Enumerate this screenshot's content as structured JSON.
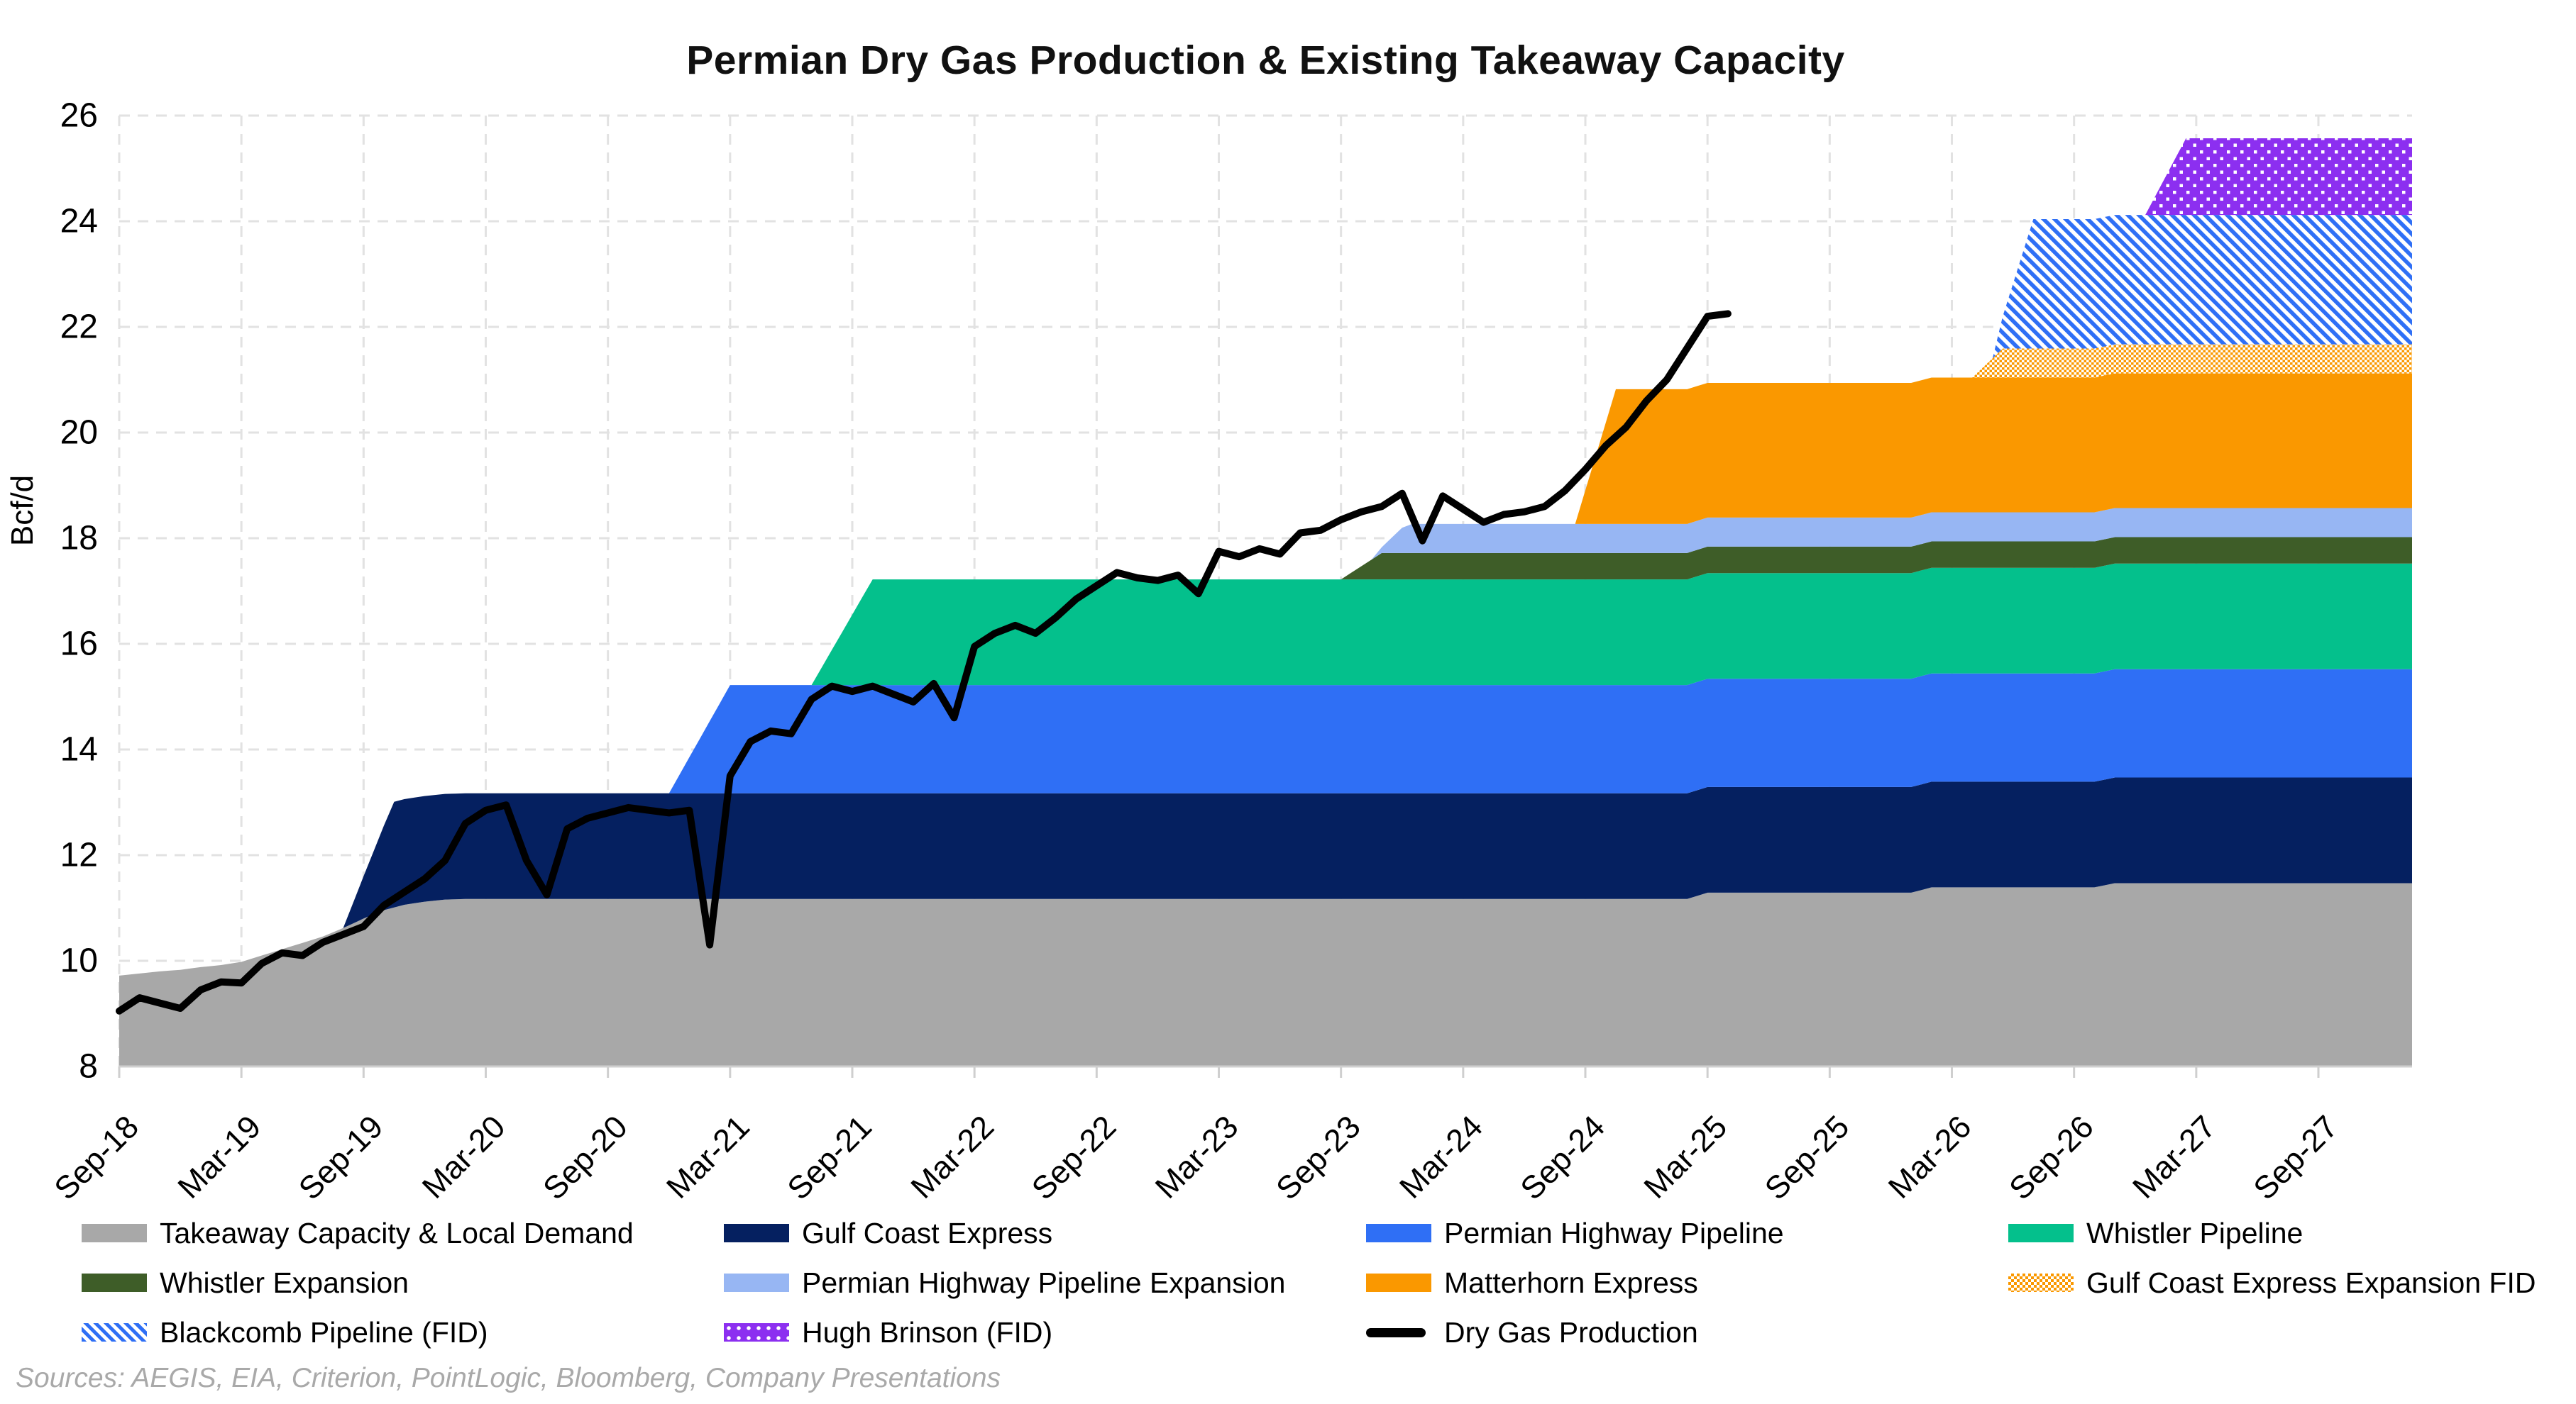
{
  "chart": {
    "title": "Permian Dry Gas Production & Existing Takeaway Capacity",
    "sources": "Sources: AEGIS, EIA, Criterion, PointLogic, Bloomberg, Company Presentations",
    "y_axis": {
      "label": "Bcf/d",
      "ticks": [
        8,
        10,
        12,
        14,
        16,
        18,
        20,
        22,
        24,
        26
      ],
      "min": 8,
      "max": 26
    },
    "x_axis": {
      "tick_labels": [
        "Sep-18",
        "Mar-19",
        "Sep-19",
        "Mar-20",
        "Sep-20",
        "Mar-21",
        "Sep-21",
        "Mar-22",
        "Sep-22",
        "Mar-23",
        "Sep-23",
        "Mar-24",
        "Sep-24",
        "Mar-25",
        "Sep-25",
        "Mar-26",
        "Sep-26",
        "Mar-27",
        "Sep-27"
      ],
      "months_between_ticks": 6
    }
  },
  "colors": {
    "takeaway": "#a8a8a8",
    "gulf_coast_express": "#052060",
    "permian_highway": "#2f6ff5",
    "whistler": "#04c08c",
    "whistler_expansion": "#3e5d28",
    "permian_highway_expansion": "#97b6f3",
    "matterhorn": "#fa9800",
    "gcx_expansion_fid": "#fa9800",
    "blackcomb_fid": "#2f6ff5",
    "hugh_brinson_fid": "#8c2ff0",
    "production_line": "#000000",
    "gridline": "#e2e2e2",
    "axis": "#cfcfcf",
    "white": "#ffffff"
  },
  "legend": {
    "items": [
      {
        "label": "Takeaway Capacity & Local Demand",
        "swatch": "solid",
        "color": "#a8a8a8"
      },
      {
        "label": "Gulf Coast Express",
        "swatch": "solid",
        "color": "#052060"
      },
      {
        "label": "Permian Highway Pipeline",
        "swatch": "solid",
        "color": "#2f6ff5"
      },
      {
        "label": "Whistler Pipeline",
        "swatch": "solid",
        "color": "#04c08c"
      },
      {
        "label": "Whistler Expansion",
        "swatch": "solid",
        "color": "#3e5d28"
      },
      {
        "label": "Permian Highway Pipeline Expansion",
        "swatch": "solid",
        "color": "#97b6f3"
      },
      {
        "label": "Matterhorn Express",
        "swatch": "solid",
        "color": "#fa9800"
      },
      {
        "label": "Gulf Coast Express Expansion FID",
        "swatch": "checker",
        "color": "#fa9800"
      },
      {
        "label": "Blackcomb Pipeline (FID)",
        "swatch": "stripes",
        "color": "#2f6ff5"
      },
      {
        "label": "Hugh Brinson (FID)",
        "swatch": "dots",
        "color": "#8c2ff0"
      },
      {
        "label": "Dry Gas Production",
        "swatch": "line",
        "color": "#000000"
      }
    ]
  },
  "chart_data": {
    "type": "area",
    "subtype": "stacked-area-with-line",
    "title": "Permian Dry Gas Production & Existing Takeaway Capacity",
    "ylabel": "Bcf/d",
    "ylim": [
      8,
      26
    ],
    "grid": "dashed",
    "legend_position": "bottom",
    "time_start": "Sep-2018",
    "time_end_months_after_start": 112.6,
    "x_tick_month_offsets": [
      0,
      6,
      12,
      18,
      24,
      30,
      36,
      42,
      48,
      54,
      60,
      66,
      72,
      78,
      84,
      90,
      96,
      102,
      108
    ],
    "x_tick_labels": [
      "Sep-18",
      "Mar-19",
      "Sep-19",
      "Mar-20",
      "Sep-20",
      "Mar-21",
      "Sep-21",
      "Mar-22",
      "Sep-22",
      "Mar-23",
      "Sep-23",
      "Mar-24",
      "Sep-24",
      "Mar-25",
      "Sep-25",
      "Mar-26",
      "Sep-26",
      "Mar-27",
      "Sep-27"
    ],
    "layers_note": "Stacked bottom-to-top. 'base_breakpoints' give the absolute level (Bcf/d) of the bottom gray layer vs months since Sep-2018; every other layer lists its thickness (Bcf/d) breakpoints which ramp in when the pipeline enters service.",
    "layers": [
      {
        "name": "Takeaway Capacity & Local Demand",
        "fill": "solid",
        "color": "#a8a8a8",
        "base_breakpoints": [
          [
            0,
            9.72
          ],
          [
            1,
            9.76
          ],
          [
            2,
            9.8
          ],
          [
            3,
            9.83
          ],
          [
            4,
            9.88
          ],
          [
            5,
            9.92
          ],
          [
            6,
            9.98
          ],
          [
            7,
            10.1
          ],
          [
            8,
            10.22
          ],
          [
            9,
            10.34
          ],
          [
            10,
            10.46
          ],
          [
            11,
            10.62
          ],
          [
            12,
            10.8
          ],
          [
            13,
            10.96
          ],
          [
            14,
            11.06
          ],
          [
            15,
            11.12
          ],
          [
            16,
            11.16
          ],
          [
            17,
            11.17
          ],
          [
            77,
            11.17
          ],
          [
            78,
            11.29
          ],
          [
            88,
            11.29
          ],
          [
            89,
            11.39
          ],
          [
            97,
            11.39
          ],
          [
            98,
            11.47
          ],
          [
            112.6,
            11.47
          ]
        ]
      },
      {
        "name": "Gulf Coast Express",
        "fill": "solid",
        "color": "#052060",
        "breakpoints": [
          [
            0,
            0
          ],
          [
            11,
            0
          ],
          [
            13.5,
            2.0
          ],
          [
            112.6,
            2.0
          ]
        ]
      },
      {
        "name": "Permian Highway Pipeline",
        "fill": "solid",
        "color": "#2f6ff5",
        "breakpoints": [
          [
            0,
            0
          ],
          [
            27,
            0
          ],
          [
            30,
            2.05
          ],
          [
            112.6,
            2.05
          ]
        ]
      },
      {
        "name": "Whistler Pipeline",
        "fill": "solid",
        "color": "#04c08c",
        "breakpoints": [
          [
            0,
            0
          ],
          [
            34,
            0
          ],
          [
            37,
            2.0
          ],
          [
            112.6,
            2.0
          ]
        ]
      },
      {
        "name": "Whistler Expansion",
        "fill": "solid",
        "color": "#3e5d28",
        "breakpoints": [
          [
            0,
            0
          ],
          [
            60,
            0
          ],
          [
            62,
            0.5
          ],
          [
            112.6,
            0.5
          ]
        ]
      },
      {
        "name": "Permian Highway Pipeline Expansion",
        "fill": "solid",
        "color": "#97b6f3",
        "breakpoints": [
          [
            0,
            0
          ],
          [
            61.7,
            0
          ],
          [
            63.2,
            0.55
          ],
          [
            112.6,
            0.55
          ]
        ]
      },
      {
        "name": "Matterhorn Express",
        "fill": "solid",
        "color": "#fa9800",
        "breakpoints": [
          [
            0,
            0
          ],
          [
            71.5,
            0
          ],
          [
            73.5,
            2.55
          ],
          [
            112.6,
            2.55
          ]
        ]
      },
      {
        "name": "Gulf Coast Express Expansion FID",
        "fill": "checker",
        "color": "#fa9800",
        "breakpoints": [
          [
            0,
            0
          ],
          [
            91,
            0
          ],
          [
            92.5,
            0.55
          ],
          [
            112.6,
            0.55
          ]
        ]
      },
      {
        "name": "Blackcomb Pipeline (FID)",
        "fill": "stripes",
        "color": "#2f6ff5",
        "breakpoints": [
          [
            0,
            0
          ],
          [
            92,
            0
          ],
          [
            94,
            2.45
          ],
          [
            112.6,
            2.45
          ]
        ]
      },
      {
        "name": "Hugh Brinson (FID)",
        "fill": "dots",
        "color": "#8c2ff0",
        "breakpoints": [
          [
            0,
            0
          ],
          [
            99.5,
            0
          ],
          [
            101.5,
            1.45
          ],
          [
            112.6,
            1.45
          ]
        ]
      }
    ],
    "production": {
      "name": "Dry Gas Production",
      "color": "#000000",
      "start": "Sep-2018",
      "interval": "monthly",
      "values": [
        9.05,
        9.3,
        9.2,
        9.1,
        9.45,
        9.6,
        9.58,
        9.95,
        10.15,
        10.1,
        10.35,
        10.5,
        10.65,
        11.05,
        11.3,
        11.55,
        11.9,
        12.6,
        12.85,
        12.95,
        11.9,
        11.25,
        12.5,
        12.7,
        12.8,
        12.9,
        12.85,
        12.8,
        12.85,
        10.3,
        13.5,
        14.15,
        14.35,
        14.3,
        14.95,
        15.2,
        15.1,
        15.2,
        15.05,
        14.9,
        15.25,
        14.6,
        15.95,
        16.2,
        16.35,
        16.2,
        16.5,
        16.85,
        17.1,
        17.35,
        17.25,
        17.2,
        17.3,
        16.95,
        17.75,
        17.65,
        17.8,
        17.7,
        18.1,
        18.15,
        18.35,
        18.5,
        18.6,
        18.85,
        17.95,
        18.8,
        18.55,
        18.3,
        18.45,
        18.5,
        18.6,
        18.9,
        19.3,
        19.75,
        20.1,
        20.6,
        21.0,
        21.6,
        22.2,
        22.25
      ]
    }
  }
}
